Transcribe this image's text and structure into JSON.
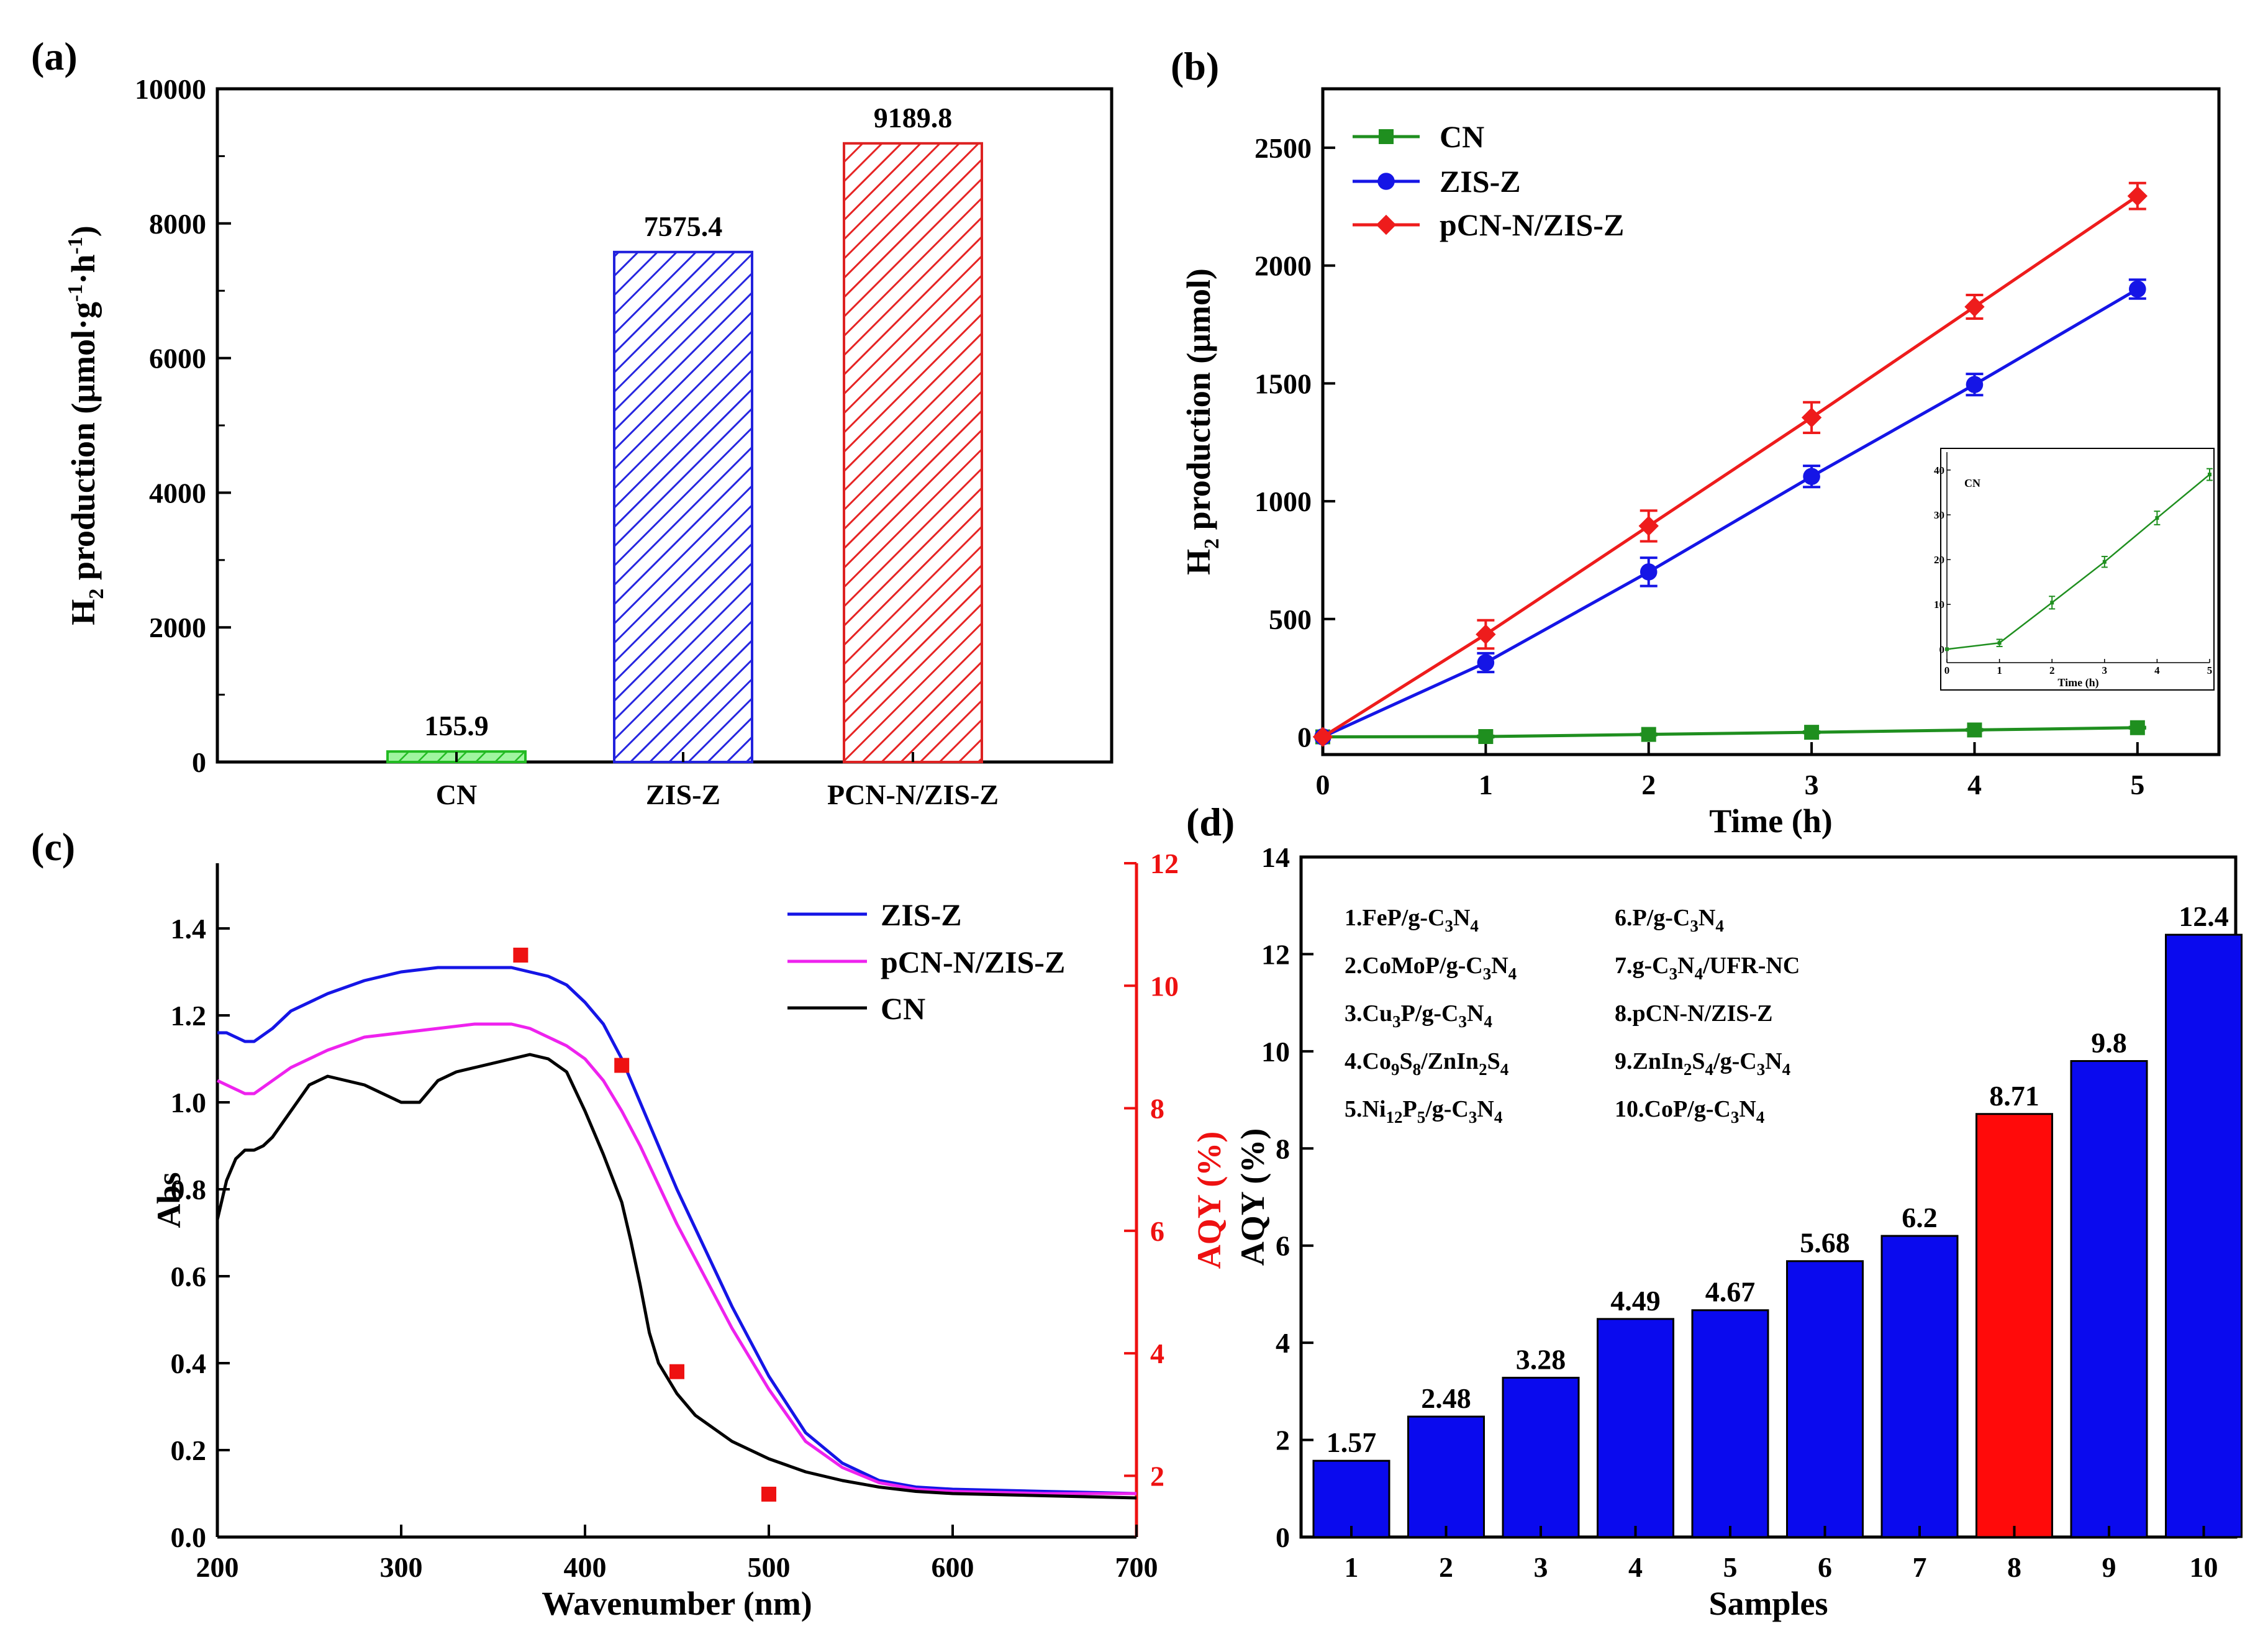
{
  "chart_data": [
    {
      "panel": "(a)",
      "type": "bar",
      "categories": [
        "CN",
        "ZIS-Z",
        "PCN-N/ZIS-Z"
      ],
      "values": [
        155.9,
        7575.4,
        9189.8
      ],
      "value_labels": [
        "155.9",
        "7575.4",
        "9189.8"
      ],
      "colors": [
        "#33dd33",
        "#3333ee",
        "#ee3333"
      ],
      "ylabel_main": "H",
      "ylabel_sub": "2",
      "ylabel_rest": " production (μmol·g",
      "ylabel_sup1": "-1",
      "ylabel_mid": "·h",
      "ylabel_sup2": "-1",
      "ylabel_end": ")",
      "ylim": [
        0,
        10000
      ],
      "yticks": [
        0,
        2000,
        4000,
        6000,
        8000,
        10000
      ]
    },
    {
      "panel": "(b)",
      "type": "line",
      "x": [
        0,
        1,
        2,
        3,
        4,
        5
      ],
      "series": [
        {
          "name": "CN",
          "color": "#1f8f1f",
          "marker": "square",
          "values": [
            0,
            1.4,
            10.4,
            19.5,
            29.3,
            39.0
          ],
          "errors": [
            0,
            3,
            3,
            3,
            3,
            3
          ]
        },
        {
          "name": "ZIS-Z",
          "color": "#1515e6",
          "marker": "circle",
          "values": [
            0,
            315,
            700,
            1105,
            1495,
            1900
          ],
          "errors": [
            0,
            40,
            60,
            45,
            45,
            40
          ]
        },
        {
          "name": "pCN-N/ZIS-Z",
          "color": "#ee1c1c",
          "marker": "diamond",
          "values": [
            0,
            435,
            895,
            1355,
            1825,
            2295
          ],
          "errors": [
            0,
            60,
            65,
            65,
            50,
            55
          ]
        }
      ],
      "xlabel": "Time (h)",
      "ylabel_main": "H",
      "ylabel_sub": "2",
      "ylabel_rest": " production (μmol)",
      "xlim": [
        0,
        5.5
      ],
      "ylim": [
        -75,
        2750
      ],
      "xticks": [
        0,
        1,
        2,
        3,
        4,
        5
      ],
      "yticks": [
        0,
        500,
        1000,
        1500,
        2000,
        2500
      ],
      "inset": {
        "label": "CN",
        "xlabel": "Time (h)",
        "x": [
          0,
          1,
          2,
          3,
          4,
          5
        ],
        "values": [
          0,
          1.4,
          10.4,
          19.5,
          29.3,
          39.0
        ],
        "errors": [
          0,
          0.8,
          1.4,
          1.2,
          1.5,
          1.3
        ],
        "xticks": [
          0,
          1,
          2,
          3,
          4,
          5
        ],
        "yticks": [
          0,
          10,
          20,
          30,
          40
        ],
        "xlim": [
          0,
          5
        ],
        "ylim": [
          -3,
          44
        ],
        "color": "#1f8f1f"
      }
    },
    {
      "panel": "(c)",
      "type": "line",
      "xlabel": "Wavenumber (nm)",
      "ylabel_left": "Abs",
      "ylabel_right": "AQY (%)",
      "xlim": [
        200,
        700
      ],
      "ylim_left": [
        0,
        1.55
      ],
      "ylim_right": [
        1,
        12
      ],
      "xticks": [
        200,
        300,
        400,
        500,
        600,
        700
      ],
      "yticks_left": [
        "0.0",
        "0.2",
        "0.4",
        "0.6",
        "0.8",
        "1.0",
        "1.2",
        "1.4"
      ],
      "yticks_right": [
        2,
        4,
        6,
        8,
        10,
        12
      ],
      "series": [
        {
          "name": "ZIS-Z",
          "color": "#1515e6",
          "x": [
            200,
            205,
            210,
            215,
            220,
            230,
            240,
            260,
            280,
            300,
            320,
            340,
            360,
            370,
            380,
            390,
            400,
            410,
            420,
            430,
            440,
            450,
            460,
            470,
            480,
            490,
            500,
            520,
            540,
            560,
            580,
            600,
            650,
            700
          ],
          "y": [
            1.16,
            1.16,
            1.15,
            1.14,
            1.14,
            1.17,
            1.21,
            1.25,
            1.28,
            1.3,
            1.31,
            1.31,
            1.31,
            1.3,
            1.29,
            1.27,
            1.23,
            1.18,
            1.1,
            1.0,
            0.9,
            0.8,
            0.71,
            0.62,
            0.53,
            0.45,
            0.37,
            0.24,
            0.17,
            0.13,
            0.115,
            0.11,
            0.105,
            0.1
          ]
        },
        {
          "name": "pCN-N/ZIS-Z",
          "color": "#ee22ee",
          "x": [
            200,
            205,
            210,
            215,
            220,
            230,
            240,
            260,
            280,
            300,
            320,
            340,
            360,
            370,
            380,
            390,
            400,
            410,
            420,
            430,
            440,
            450,
            460,
            470,
            480,
            490,
            500,
            520,
            540,
            560,
            580,
            600,
            650,
            700
          ],
          "y": [
            1.05,
            1.04,
            1.03,
            1.02,
            1.02,
            1.05,
            1.08,
            1.12,
            1.15,
            1.16,
            1.17,
            1.18,
            1.18,
            1.17,
            1.15,
            1.13,
            1.1,
            1.05,
            0.98,
            0.9,
            0.81,
            0.72,
            0.64,
            0.56,
            0.48,
            0.41,
            0.34,
            0.22,
            0.16,
            0.125,
            0.11,
            0.105,
            0.1,
            0.1
          ]
        },
        {
          "name": "CN",
          "color": "#000000",
          "x": [
            200,
            205,
            210,
            215,
            220,
            225,
            230,
            240,
            250,
            260,
            270,
            280,
            290,
            300,
            310,
            320,
            330,
            340,
            350,
            360,
            370,
            380,
            390,
            400,
            410,
            420,
            425,
            430,
            435,
            440,
            450,
            460,
            470,
            480,
            500,
            520,
            540,
            560,
            580,
            600,
            650,
            700
          ],
          "y": [
            0.73,
            0.82,
            0.87,
            0.89,
            0.89,
            0.9,
            0.92,
            0.98,
            1.04,
            1.06,
            1.05,
            1.04,
            1.02,
            1.0,
            1.0,
            1.05,
            1.07,
            1.08,
            1.09,
            1.1,
            1.11,
            1.1,
            1.07,
            0.98,
            0.88,
            0.77,
            0.68,
            0.58,
            0.47,
            0.4,
            0.33,
            0.28,
            0.25,
            0.22,
            0.18,
            0.15,
            0.13,
            0.115,
            0.105,
            0.1,
            0.095,
            0.09
          ]
        }
      ],
      "aqy_points": {
        "name": "AQY",
        "color": "#ee1111",
        "x": [
          365,
          420,
          450,
          500
        ],
        "y": [
          10.5,
          8.7,
          3.7,
          1.7
        ]
      }
    },
    {
      "panel": "(d)",
      "type": "bar",
      "categories": [
        "1",
        "2",
        "3",
        "4",
        "5",
        "6",
        "7",
        "8",
        "9",
        "10"
      ],
      "values": [
        1.57,
        2.48,
        3.28,
        4.49,
        4.67,
        5.68,
        6.2,
        8.71,
        9.8,
        12.4
      ],
      "value_labels": [
        "1.57",
        "2.48",
        "3.28",
        "4.49",
        "4.67",
        "5.68",
        "6.2",
        "8.71",
        "9.8",
        "12.4"
      ],
      "colors": [
        "#0a0aee",
        "#0a0aee",
        "#0a0aee",
        "#0a0aee",
        "#0a0aee",
        "#0a0aee",
        "#0a0aee",
        "#ff0a0a",
        "#0a0aee",
        "#0a0aee"
      ],
      "xlabel": "Samples",
      "ylabel": "AQY (%)",
      "ylim": [
        0,
        14
      ],
      "yticks": [
        0,
        2,
        4,
        6,
        8,
        10,
        12,
        14
      ],
      "legend_items": [
        {
          "parts": [
            {
              "t": "1.FeP/g-C"
            },
            {
              "t": "3",
              "sub": true
            },
            {
              "t": "N"
            },
            {
              "t": "4",
              "sub": true
            }
          ]
        },
        {
          "parts": [
            {
              "t": "2.CoMoP/g-C"
            },
            {
              "t": "3",
              "sub": true
            },
            {
              "t": "N"
            },
            {
              "t": "4",
              "sub": true
            }
          ]
        },
        {
          "parts": [
            {
              "t": "3.Cu"
            },
            {
              "t": "3",
              "sub": true
            },
            {
              "t": "P/g-C"
            },
            {
              "t": "3",
              "sub": true
            },
            {
              "t": "N"
            },
            {
              "t": "4",
              "sub": true
            }
          ]
        },
        {
          "parts": [
            {
              "t": "4.Co"
            },
            {
              "t": "9",
              "sub": true
            },
            {
              "t": "S"
            },
            {
              "t": "8",
              "sub": true
            },
            {
              "t": "/ZnIn"
            },
            {
              "t": "2",
              "sub": true
            },
            {
              "t": "S"
            },
            {
              "t": "4",
              "sub": true
            }
          ]
        },
        {
          "parts": [
            {
              "t": "5.Ni"
            },
            {
              "t": "12",
              "sub": true
            },
            {
              "t": "P"
            },
            {
              "t": "5",
              "sub": true
            },
            {
              "t": "/g-C"
            },
            {
              "t": "3",
              "sub": true
            },
            {
              "t": "N"
            },
            {
              "t": "4",
              "sub": true
            }
          ]
        },
        {
          "parts": [
            {
              "t": "6.P/g-C"
            },
            {
              "t": "3",
              "sub": true
            },
            {
              "t": "N"
            },
            {
              "t": "4",
              "sub": true
            }
          ]
        },
        {
          "parts": [
            {
              "t": "7.g-C"
            },
            {
              "t": "3",
              "sub": true
            },
            {
              "t": "N"
            },
            {
              "t": "4",
              "sub": true
            },
            {
              "t": "/UFR-NC"
            }
          ]
        },
        {
          "parts": [
            {
              "t": "8.pCN-N/ZIS-Z"
            }
          ]
        },
        {
          "parts": [
            {
              "t": "9.ZnIn"
            },
            {
              "t": "2",
              "sub": true
            },
            {
              "t": "S"
            },
            {
              "t": "4",
              "sub": true
            },
            {
              "t": "/g-C"
            },
            {
              "t": "3",
              "sub": true
            },
            {
              "t": "N"
            },
            {
              "t": "4",
              "sub": true
            }
          ]
        },
        {
          "parts": [
            {
              "t": "10.CoP/g-C"
            },
            {
              "t": "3",
              "sub": true
            },
            {
              "t": "N"
            },
            {
              "t": "4",
              "sub": true
            }
          ]
        }
      ]
    }
  ]
}
